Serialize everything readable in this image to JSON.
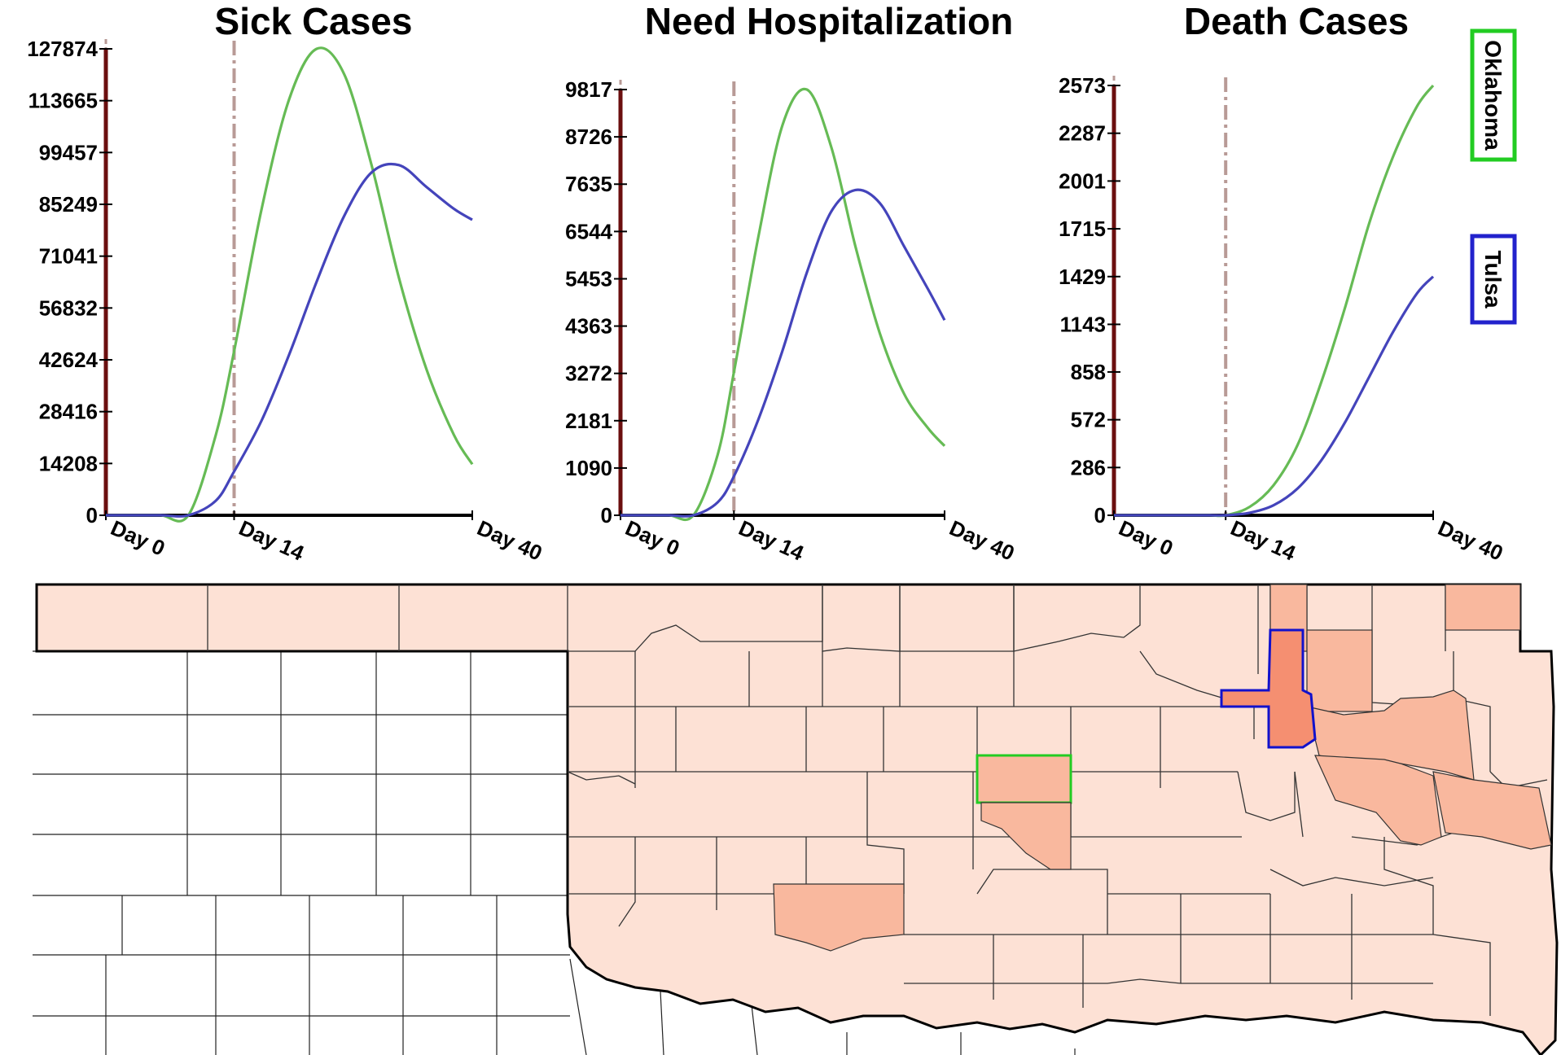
{
  "chart_data": [
    {
      "type": "line",
      "title": "Sick Cases",
      "x": [
        0,
        3,
        6,
        9,
        12,
        14,
        17,
        20,
        23,
        26,
        29,
        32,
        35,
        38,
        40
      ],
      "xticks": [
        {
          "value": 0,
          "label": "Day 0"
        },
        {
          "value": 14,
          "label": "Day 14"
        },
        {
          "value": 40,
          "label": "Day 40"
        }
      ],
      "marker_line_x": 14,
      "yticks": [
        0,
        14208,
        28416,
        42624,
        56832,
        71041,
        85249,
        99457,
        113665,
        127874
      ],
      "ylim": [
        0,
        127874
      ],
      "series": [
        {
          "name": "Oklahoma",
          "values": [
            0,
            0,
            0,
            0,
            22000,
            45000,
            84000,
            114000,
            127874,
            121000,
            96000,
            65000,
            40000,
            22000,
            14000
          ],
          "color": "#66bb55"
        },
        {
          "name": "Tulsa",
          "values": [
            0,
            0,
            0,
            0,
            4000,
            12000,
            26000,
            44000,
            64000,
            82000,
            94000,
            96000,
            90000,
            84000,
            81000
          ],
          "color": "#4444bb"
        }
      ]
    },
    {
      "type": "line",
      "title": "Need Hospitalization",
      "x": [
        0,
        3,
        6,
        9,
        12,
        14,
        17,
        20,
        23,
        26,
        29,
        32,
        35,
        38,
        40
      ],
      "xticks": [
        {
          "value": 0,
          "label": "Day 0"
        },
        {
          "value": 14,
          "label": "Day 14"
        },
        {
          "value": 40,
          "label": "Day 40"
        }
      ],
      "marker_line_x": 14,
      "yticks": [
        0,
        1090,
        2181,
        3272,
        4363,
        5453,
        6544,
        7635,
        8726,
        9817
      ],
      "ylim": [
        0,
        9817
      ],
      "series": [
        {
          "name": "Oklahoma",
          "values": [
            0,
            0,
            0,
            0,
            1400,
            3300,
            6400,
            9000,
            9817,
            8500,
            6200,
            4200,
            2800,
            2000,
            1600
          ],
          "color": "#66bb55"
        },
        {
          "name": "Tulsa",
          "values": [
            0,
            0,
            0,
            0,
            300,
            900,
            2200,
            3800,
            5600,
            7000,
            7500,
            7200,
            6200,
            5200,
            4500
          ],
          "color": "#4444bb"
        }
      ]
    },
    {
      "type": "line",
      "title": "Death Cases",
      "x": [
        0,
        3,
        6,
        9,
        12,
        14,
        17,
        20,
        23,
        26,
        29,
        32,
        35,
        38,
        40
      ],
      "xticks": [
        {
          "value": 0,
          "label": "Day 0"
        },
        {
          "value": 14,
          "label": "Day 14"
        },
        {
          "value": 40,
          "label": "Day 40"
        }
      ],
      "marker_line_x": 14,
      "yticks": [
        0,
        286,
        572,
        858,
        1143,
        1429,
        1715,
        2001,
        2287,
        2573
      ],
      "ylim": [
        0,
        2573
      ],
      "series": [
        {
          "name": "Oklahoma",
          "values": [
            0,
            0,
            0,
            0,
            0,
            0,
            50,
            180,
            420,
            800,
            1250,
            1750,
            2150,
            2450,
            2573
          ],
          "color": "#66bb55"
        },
        {
          "name": "Tulsa",
          "values": [
            0,
            0,
            0,
            0,
            0,
            0,
            15,
            60,
            160,
            330,
            560,
            830,
            1100,
            1330,
            1429
          ],
          "color": "#4444bb"
        }
      ]
    }
  ],
  "legend": [
    {
      "label": "Oklahoma",
      "color": "#22cc22"
    },
    {
      "label": "Tulsa",
      "color": "#2222cc"
    }
  ],
  "map": {
    "fill_color": "#fde1d5",
    "mid_color": "#f9b89e",
    "high_color": "#f58f71",
    "oklahoma_outline": "#22cc22",
    "tulsa_outline": "#1111cc"
  }
}
